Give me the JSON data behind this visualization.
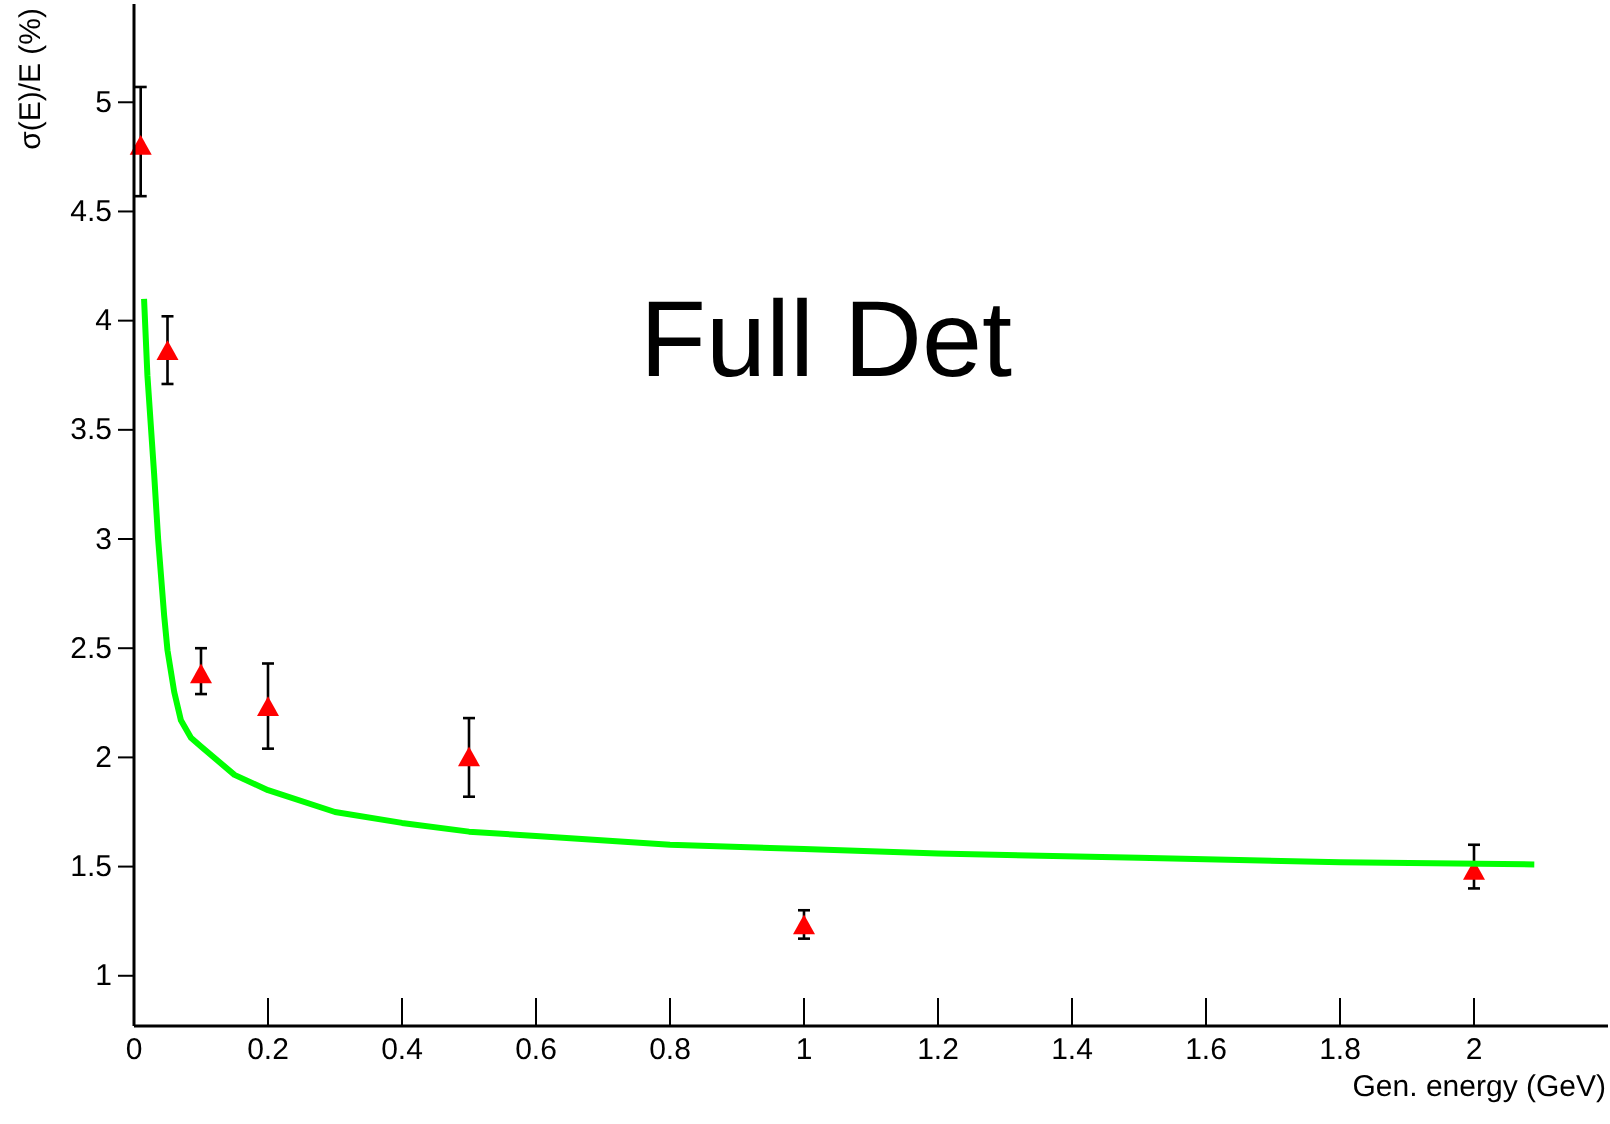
{
  "chart_data": {
    "type": "scatter",
    "xlabel": "Gen. energy (GeV)",
    "ylabel": "σ(E)/E (%)",
    "annotations": [
      "Full Det"
    ],
    "xlim": [
      0,
      2.2
    ],
    "ylim": [
      0.77,
      5.45
    ],
    "xticks": [
      0,
      0.2,
      0.4,
      0.6,
      0.8,
      1,
      1.2,
      1.4,
      1.6,
      1.8,
      2
    ],
    "yticks": [
      1,
      1.5,
      2,
      2.5,
      3,
      3.5,
      4,
      4.5,
      5
    ],
    "grid": false,
    "series": [
      {
        "color": "#ff0000",
        "marker": "triangle",
        "x": [
          0.01,
          0.05,
          0.1,
          0.2,
          0.5,
          1,
          2
        ],
        "values": [
          4.8,
          3.86,
          2.38,
          2.23,
          2.0,
          1.23,
          1.48
        ],
        "errors": [
          [
            4.57,
            5.07
          ],
          [
            3.71,
            4.02
          ],
          [
            2.29,
            2.5
          ],
          [
            2.04,
            2.43
          ],
          [
            1.82,
            2.18
          ],
          [
            1.17,
            1.3
          ],
          [
            1.4,
            1.6
          ]
        ]
      },
      {
        "type": "line",
        "color": "#00ff00",
        "x": [
          0.015,
          0.02,
          0.03,
          0.036,
          0.045,
          0.05,
          0.06,
          0.07,
          0.085,
          0.1,
          0.15,
          0.2,
          0.3,
          0.4,
          0.5,
          0.6,
          0.8,
          1.0,
          1.2,
          1.5,
          1.8,
          2.09
        ],
        "values": [
          4.1,
          3.75,
          3.3,
          3.0,
          2.65,
          2.49,
          2.3,
          2.17,
          2.09,
          2.05,
          1.92,
          1.85,
          1.75,
          1.7,
          1.66,
          1.64,
          1.6,
          1.58,
          1.56,
          1.54,
          1.52,
          1.51
        ]
      }
    ]
  }
}
